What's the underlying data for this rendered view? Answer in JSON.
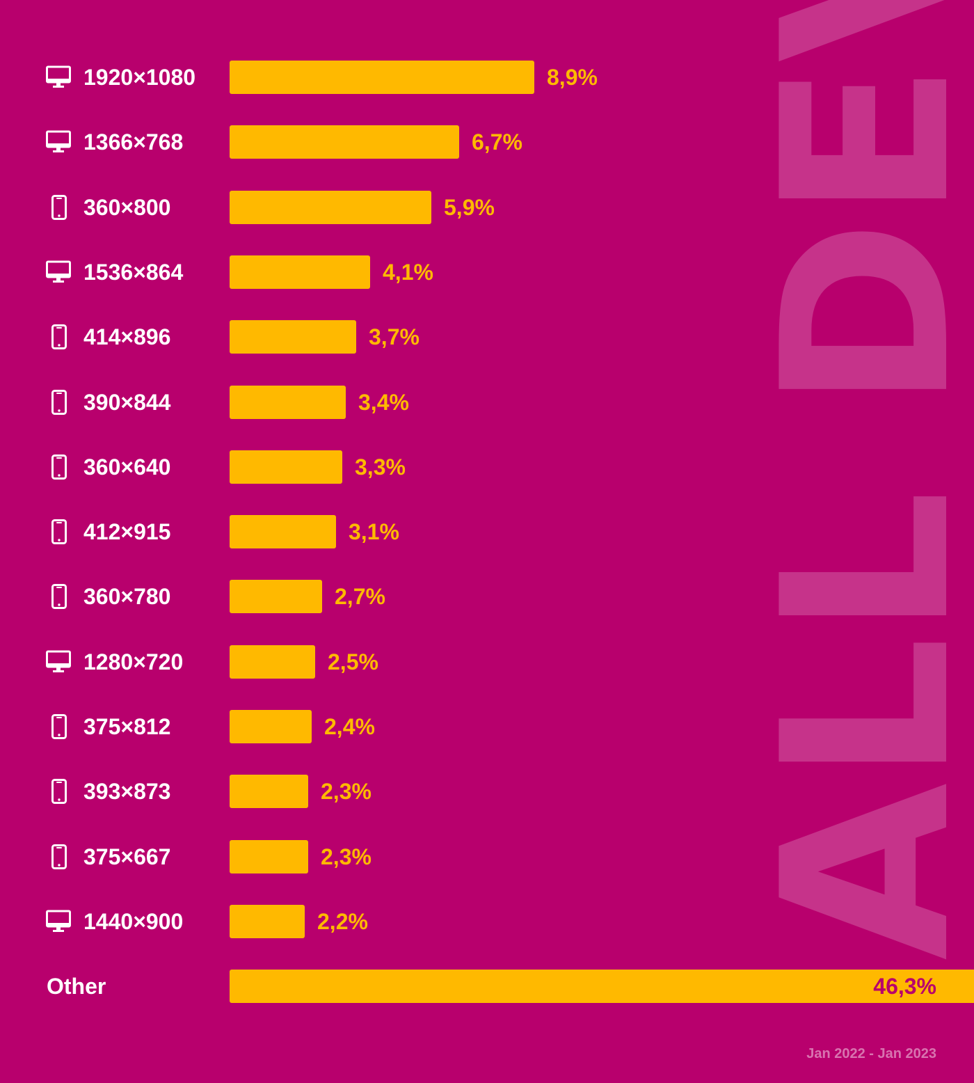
{
  "watermark_text": "ALL DEVI",
  "period": "Jan 2022 - Jan 2023",
  "colors": {
    "background": "#b8006d",
    "bar": "#ffb900",
    "label": "#ffffff",
    "value": "#ffb900",
    "value_inside": "#b8006d"
  },
  "chart_data": {
    "type": "bar",
    "orientation": "horizontal",
    "title": "",
    "xlabel": "",
    "ylabel": "",
    "unit": "%",
    "categories": [
      "1920×1080",
      "1366×768",
      "360×800",
      "1536×864",
      "414×896",
      "390×844",
      "360×640",
      "412×915",
      "360×780",
      "1280×720",
      "375×812",
      "393×873",
      "375×667",
      "1440×900",
      "Other"
    ],
    "device_icons": [
      "desktop-icon",
      "desktop-icon",
      "mobile-icon",
      "desktop-icon",
      "mobile-icon",
      "mobile-icon",
      "mobile-icon",
      "mobile-icon",
      "mobile-icon",
      "desktop-icon",
      "mobile-icon",
      "mobile-icon",
      "mobile-icon",
      "desktop-icon",
      ""
    ],
    "values": [
      8.9,
      6.7,
      5.9,
      4.1,
      3.7,
      3.4,
      3.3,
      3.1,
      2.7,
      2.5,
      2.4,
      2.3,
      2.3,
      2.2,
      46.3
    ],
    "value_labels": [
      "8,9%",
      "6,7%",
      "5,9%",
      "4,1%",
      "3,7%",
      "3,4%",
      "3,3%",
      "3,1%",
      "2,7%",
      "2,5%",
      "2,4%",
      "2,3%",
      "2,3%",
      "2,2%",
      "46,3%"
    ]
  }
}
